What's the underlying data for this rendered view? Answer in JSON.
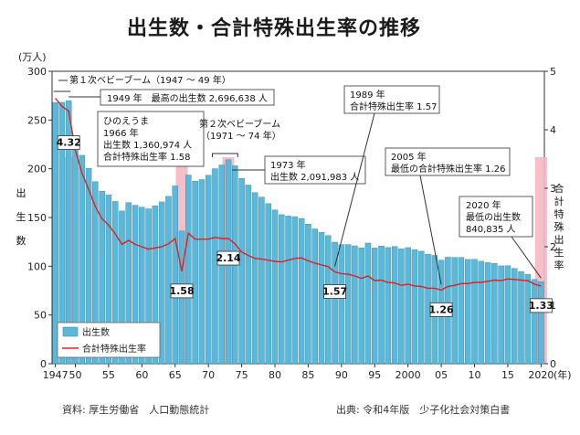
{
  "title": "出生数・合計特殊出生率の推移",
  "left_unit": "(万人)",
  "left_axis_label": [
    "出",
    "生",
    "数"
  ],
  "right_axis_label": [
    "合",
    "計",
    "特",
    "殊",
    "出",
    "生",
    "率"
  ],
  "x_unit": "(年)",
  "footer_left": "資料: 厚生労働省　人口動態統計",
  "footer_right": "出典: 令和4年版　少子化社会対策白書",
  "legend": {
    "bar": "出生数",
    "line": "合計特殊出生率"
  },
  "colors": {
    "bar": "#5bb8d8",
    "bar_edge": "#2f86a8",
    "line": "#e02020",
    "highlight": "#f4b8c4"
  },
  "annotations": {
    "boom1": "第１次ベビーブーム（1947 〜 49 年）",
    "y1949": "1949 年　最高の出生数 2,696,638 人",
    "hinoe": [
      "ひのえうま",
      "1966 年",
      "出生数 1,360,974 人",
      "合計特殊出生率 1.58"
    ],
    "boom2": [
      "第２次ベビーブーム",
      "（1971 〜 74 年）"
    ],
    "y1973": [
      "1973 年",
      "出生数 2,091,983 人"
    ],
    "y1989": [
      "1989 年",
      "合計特殊出生率 1.57"
    ],
    "y2005": [
      "2005 年",
      "最低の合計特殊出生率 1.26"
    ],
    "y2020": [
      "2020 年",
      "最低の出生数",
      "840,835 人"
    ]
  },
  "chart_data": {
    "type": "bar",
    "title": "出生数・合計特殊出生率の推移",
    "years": [
      1947,
      1948,
      1949,
      1950,
      1951,
      1952,
      1953,
      1954,
      1955,
      1956,
      1957,
      1958,
      1959,
      1960,
      1961,
      1962,
      1963,
      1964,
      1965,
      1966,
      1967,
      1968,
      1969,
      1970,
      1971,
      1972,
      1973,
      1974,
      1975,
      1976,
      1977,
      1978,
      1979,
      1980,
      1981,
      1982,
      1983,
      1984,
      1985,
      1986,
      1987,
      1988,
      1989,
      1990,
      1991,
      1992,
      1993,
      1994,
      1995,
      1996,
      1997,
      1998,
      1999,
      2000,
      2001,
      2002,
      2003,
      2004,
      2005,
      2006,
      2007,
      2008,
      2009,
      2010,
      2011,
      2012,
      2013,
      2014,
      2015,
      2016,
      2017,
      2018,
      2019,
      2020
    ],
    "x_tick_labels": [
      "1947",
      "50",
      "55",
      "60",
      "65",
      "70",
      "75",
      "80",
      "85",
      "90",
      "95",
      "2000",
      "05",
      "10",
      "15",
      "2020"
    ],
    "x_tick_years": [
      1947,
      1950,
      1955,
      1960,
      1965,
      1970,
      1975,
      1980,
      1985,
      1990,
      1995,
      2000,
      2005,
      2010,
      2015,
      2020
    ],
    "y_left": {
      "range": [
        0,
        300
      ],
      "ticks": [
        0,
        50,
        100,
        150,
        200,
        250,
        300
      ]
    },
    "y_right": {
      "range": [
        0,
        5
      ],
      "ticks": [
        0,
        1,
        2,
        3,
        4,
        5
      ]
    },
    "highlight_years": [
      1949,
      1966,
      1973,
      2020
    ],
    "series": [
      {
        "name": "出生数",
        "axis": "left",
        "values": [
          267.9,
          268.2,
          269.7,
          233.8,
          213.8,
          200.5,
          186.8,
          177.0,
          173.1,
          166.5,
          156.7,
          165.3,
          162.6,
          160.6,
          158.9,
          161.9,
          166.0,
          171.7,
          182.4,
          136.1,
          193.6,
          187.2,
          188.9,
          193.4,
          200.1,
          203.9,
          209.2,
          203.0,
          190.1,
          183.3,
          175.5,
          170.9,
          164.3,
          157.7,
          152.9,
          151.5,
          150.9,
          149.0,
          143.2,
          138.3,
          134.7,
          131.4,
          124.7,
          122.2,
          122.3,
          120.9,
          118.8,
          123.8,
          118.7,
          120.7,
          119.2,
          120.3,
          117.8,
          119.1,
          117.1,
          115.4,
          112.4,
          111.1,
          106.3,
          109.3,
          109.0,
          109.1,
          107.0,
          107.1,
          105.1,
          103.7,
          103.0,
          100.4,
          100.6,
          97.7,
          94.6,
          91.8,
          86.5,
          84.1
        ]
      },
      {
        "name": "合計特殊出生率",
        "axis": "right",
        "values": [
          4.54,
          4.4,
          4.32,
          3.65,
          3.26,
          2.98,
          2.69,
          2.48,
          2.37,
          2.22,
          2.04,
          2.11,
          2.04,
          2.0,
          1.96,
          1.98,
          2.0,
          2.05,
          2.14,
          1.58,
          2.23,
          2.13,
          2.13,
          2.13,
          2.16,
          2.14,
          2.14,
          2.05,
          1.91,
          1.85,
          1.8,
          1.79,
          1.77,
          1.75,
          1.74,
          1.77,
          1.8,
          1.81,
          1.76,
          1.72,
          1.69,
          1.66,
          1.57,
          1.54,
          1.53,
          1.5,
          1.46,
          1.5,
          1.42,
          1.43,
          1.39,
          1.38,
          1.34,
          1.36,
          1.33,
          1.32,
          1.29,
          1.29,
          1.26,
          1.32,
          1.34,
          1.37,
          1.37,
          1.39,
          1.39,
          1.41,
          1.43,
          1.42,
          1.45,
          1.44,
          1.43,
          1.42,
          1.36,
          1.33
        ]
      }
    ],
    "value_labels": [
      {
        "year": 1949,
        "text": "4.32"
      },
      {
        "year": 1966,
        "text": "1.58"
      },
      {
        "year": 1973,
        "text": "2.14"
      },
      {
        "year": 1989,
        "text": "1.57"
      },
      {
        "year": 2005,
        "text": "1.26"
      },
      {
        "year": 2020,
        "text": "1.33"
      }
    ]
  }
}
